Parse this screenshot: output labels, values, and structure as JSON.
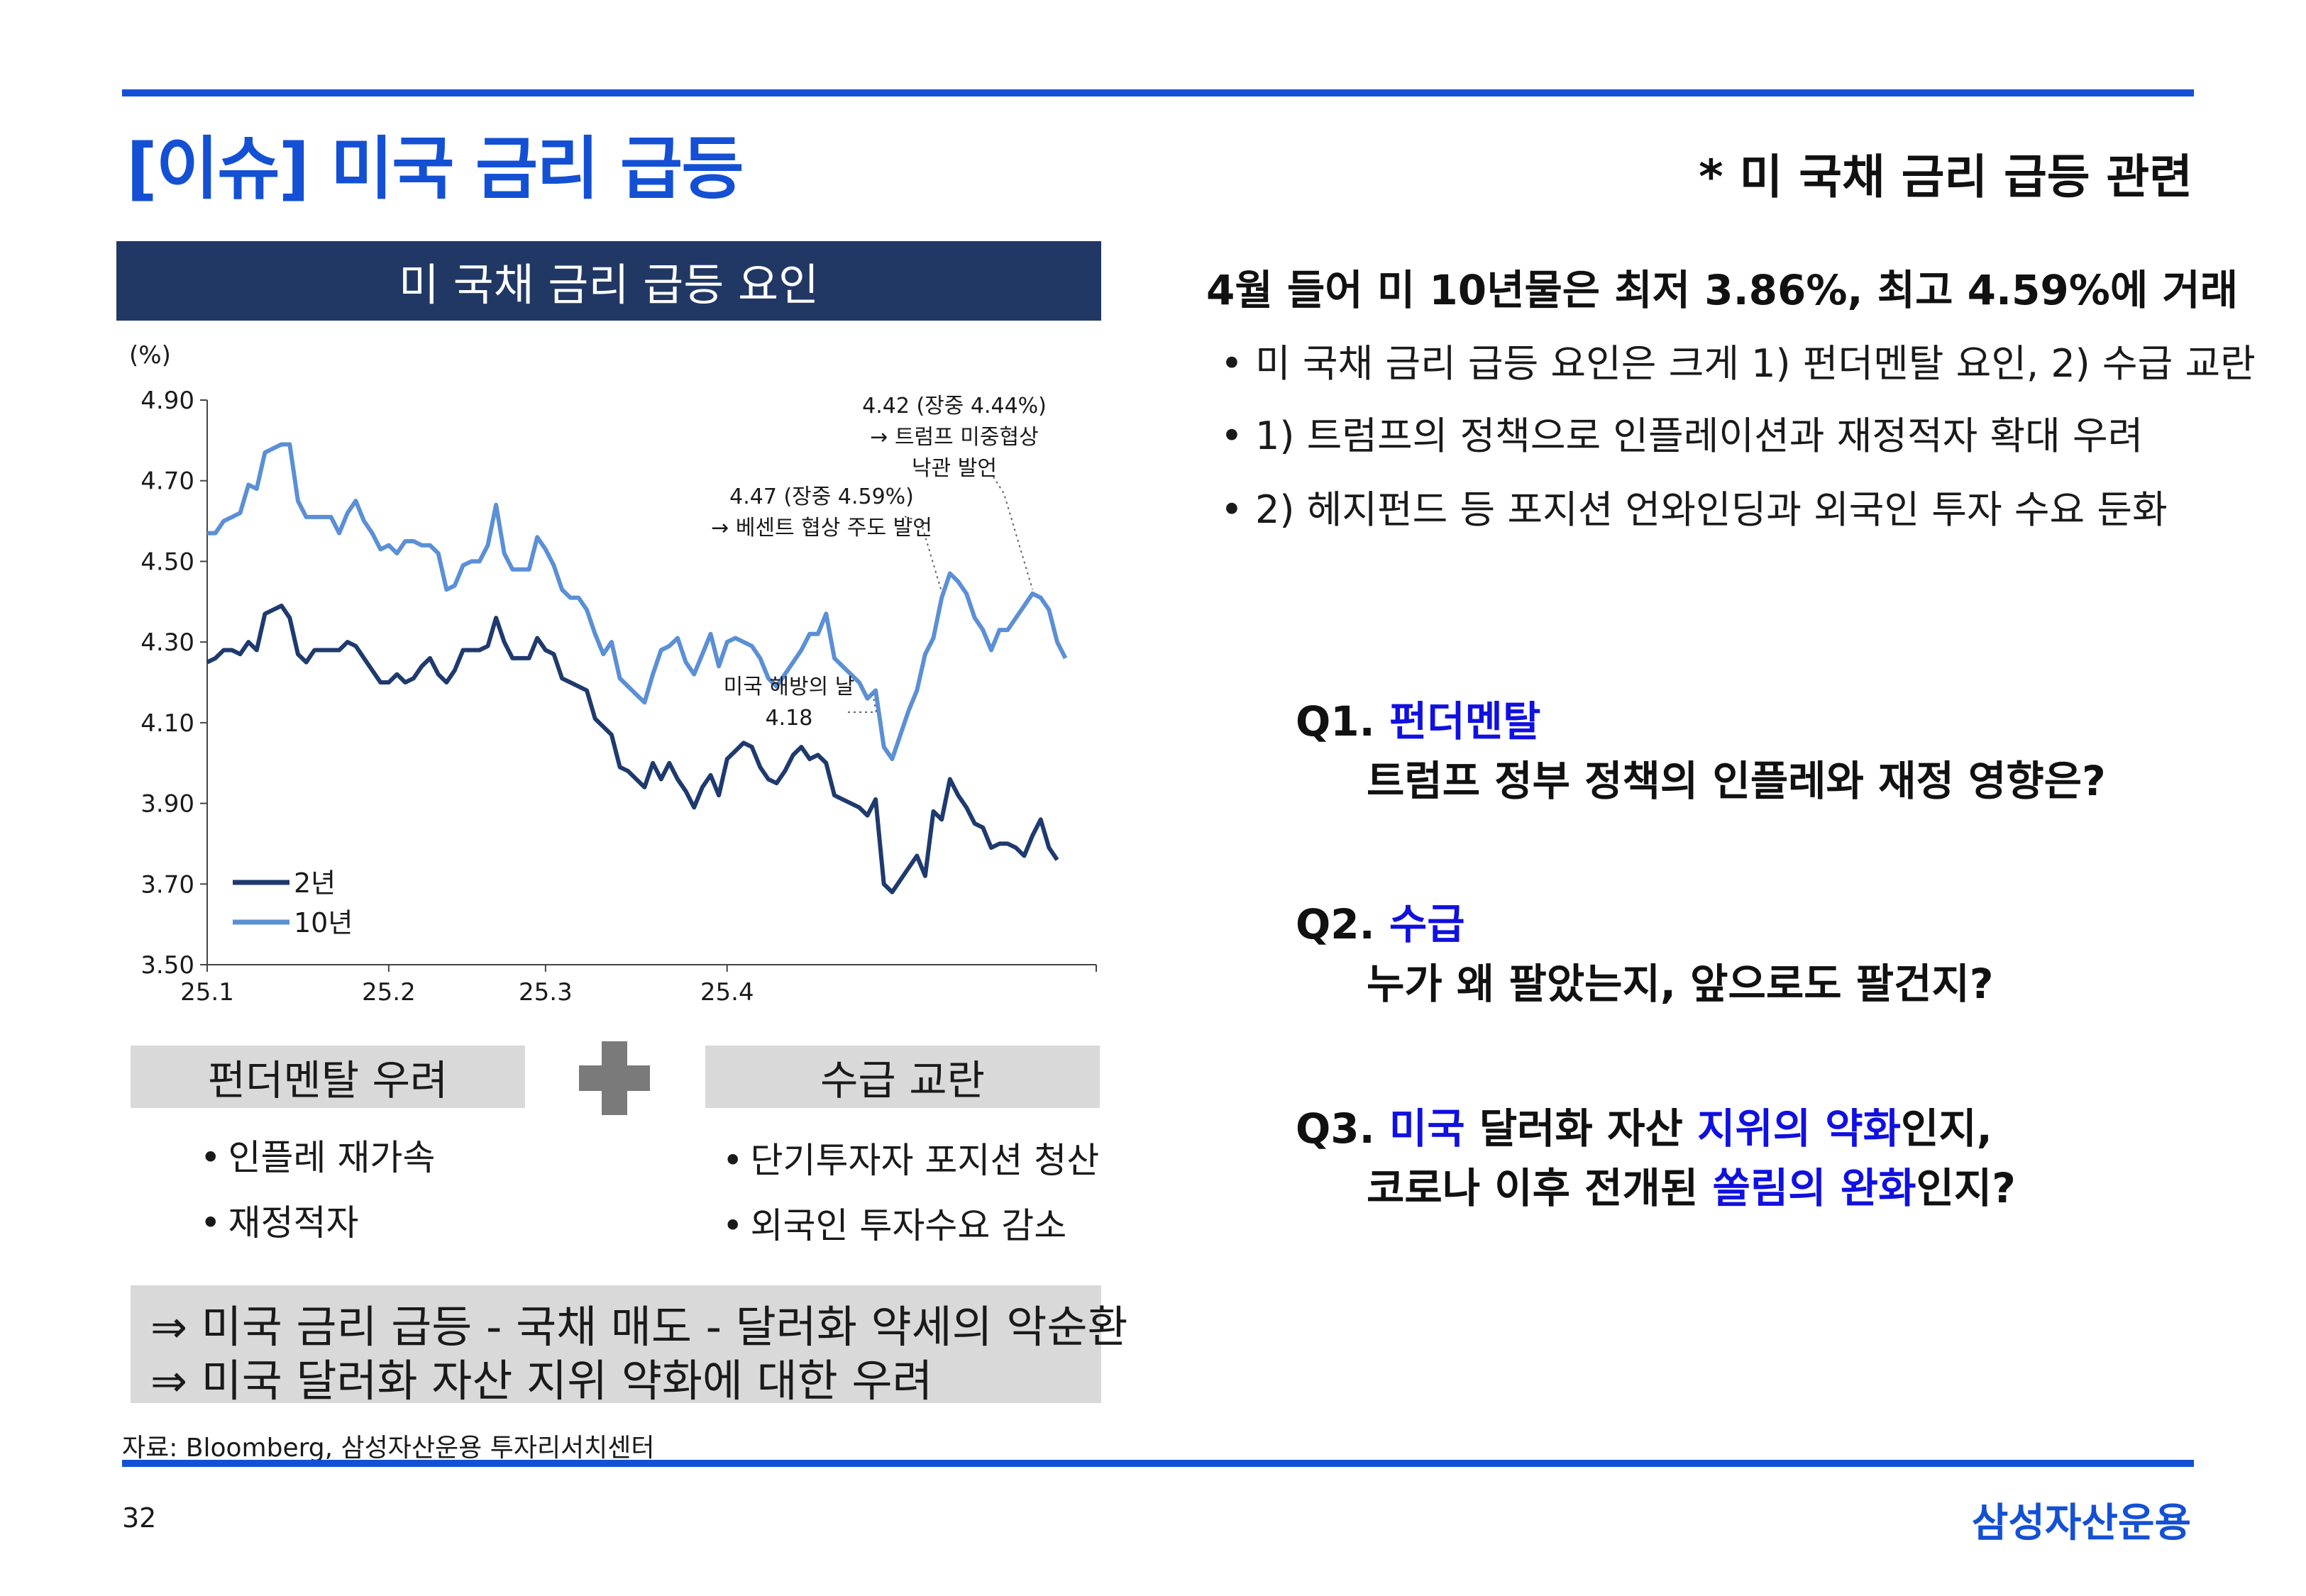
{
  "title": "[이슈] 미국 금리 급등",
  "subtitle_right": "* 미 국채 금리 급등 관련",
  "chart_banner": "미 국채 금리 급등 요인",
  "chart_data": {
    "type": "line",
    "y_unit_label": "(%)",
    "ylim": [
      3.5,
      4.9
    ],
    "yticks": [
      "4.90",
      "4.70",
      "4.50",
      "4.30",
      "4.10",
      "3.90",
      "3.70",
      "3.50"
    ],
    "xtick_labels": [
      "25.1",
      "25.2",
      "25.3",
      "25.4"
    ],
    "series": [
      {
        "name": "2년",
        "color": "#1e3a6e",
        "values": [
          4.25,
          4.26,
          4.28,
          4.28,
          4.27,
          4.3,
          4.28,
          4.37,
          4.38,
          4.39,
          4.36,
          4.27,
          4.25,
          4.28,
          4.28,
          4.28,
          4.28,
          4.3,
          4.29,
          4.26,
          4.23,
          4.2,
          4.2,
          4.22,
          4.2,
          4.21,
          4.24,
          4.26,
          4.22,
          4.2,
          4.23,
          4.28,
          4.28,
          4.28,
          4.29,
          4.36,
          4.3,
          4.26,
          4.26,
          4.26,
          4.31,
          4.28,
          4.27,
          4.21,
          4.2,
          4.19,
          4.18,
          4.11,
          4.09,
          4.07,
          3.99,
          3.98,
          3.96,
          3.94,
          4.0,
          3.96,
          4.0,
          3.96,
          3.93,
          3.89,
          3.94,
          3.97,
          3.92,
          4.01,
          4.03,
          4.05,
          4.04,
          3.99,
          3.96,
          3.95,
          3.98,
          4.02,
          4.04,
          4.01,
          4.02,
          4.0,
          3.92,
          3.91,
          3.9,
          3.89,
          3.87,
          3.91,
          3.7,
          3.68,
          3.71,
          3.74,
          3.77,
          3.72,
          3.88,
          3.86,
          3.96,
          3.92,
          3.89,
          3.85,
          3.84,
          3.79,
          3.8,
          3.8,
          3.79,
          3.77,
          3.82,
          3.86,
          3.79,
          3.76
        ]
      },
      {
        "name": "10년",
        "color": "#5b8fd6",
        "values": [
          4.57,
          4.57,
          4.6,
          4.61,
          4.62,
          4.69,
          4.68,
          4.77,
          4.78,
          4.79,
          4.79,
          4.65,
          4.61,
          4.61,
          4.61,
          4.61,
          4.57,
          4.62,
          4.65,
          4.6,
          4.57,
          4.53,
          4.54,
          4.52,
          4.55,
          4.55,
          4.54,
          4.54,
          4.52,
          4.43,
          4.44,
          4.49,
          4.5,
          4.5,
          4.54,
          4.64,
          4.52,
          4.48,
          4.48,
          4.48,
          4.56,
          4.53,
          4.49,
          4.43,
          4.41,
          4.41,
          4.38,
          4.32,
          4.27,
          4.3,
          4.21,
          4.19,
          4.17,
          4.15,
          4.22,
          4.28,
          4.29,
          4.31,
          4.25,
          4.22,
          4.27,
          4.32,
          4.24,
          4.3,
          4.31,
          4.3,
          4.29,
          4.26,
          4.21,
          4.19,
          4.22,
          4.25,
          4.28,
          4.32,
          4.32,
          4.37,
          4.26,
          4.24,
          4.22,
          4.2,
          4.16,
          4.18,
          4.04,
          4.01,
          4.07,
          4.13,
          4.18,
          4.27,
          4.31,
          4.41,
          4.47,
          4.45,
          4.42,
          4.36,
          4.33,
          4.28,
          4.33,
          4.33,
          4.36,
          4.39,
          4.42,
          4.41,
          4.38,
          4.3,
          4.26
        ]
      }
    ],
    "annotations": [
      {
        "lines": [
          "4.42 (장중 4.44%)",
          "→ 트럼프 미중협상",
          "낙관 발언"
        ],
        "point_index": 100,
        "series": 1
      },
      {
        "lines": [
          "4.47 (장중 4.59%)",
          "→ 베센트 협상 주도 발언"
        ],
        "point_index": 89,
        "series": 1
      },
      {
        "lines": [
          "미국 해방의 날",
          "4.18"
        ],
        "point_index": 81,
        "series": 1
      }
    ],
    "legend_position": "bottom-left",
    "grid": false
  },
  "factors": {
    "left_label": "펀더멘탈 우려",
    "right_label": "수급 교란",
    "left_items": [
      "인플레 재가속",
      "재정적자"
    ],
    "right_items": [
      "단기투자자 포지션 청산",
      "외국인 투자수요 감소"
    ]
  },
  "conclusion": {
    "line1": "⇒ 미국 금리 급등 - 국채 매도 - 달러화 약세의 악순환",
    "line2": "⇒ 미국 달러화 자산 지위 약화에 대한 우려"
  },
  "source": "자료: Bloomberg, 삼성자산운용 투자리서치센터",
  "page_number": "32",
  "brand": "삼성자산운용",
  "right_panel": {
    "headline": "4월 들어 미 10년물은 최저 3.86%, 최고 4.59%에 거래",
    "bullets": [
      "• 미 국채 금리 급등 요인은 크게 1) 펀더멘탈 요인, 2) 수급 교란",
      "• 1) 트럼프의 정책으로 인플레이션과 재정적자 확대 우려",
      "• 2) 헤지펀드 등 포지션 언와인딩과 외국인 투자 수요 둔화"
    ],
    "q1": {
      "prefix": "Q1. ",
      "highlight": "펀더멘탈",
      "detail": "트럼프 정부 정책의 인플레와 재정 영향은?"
    },
    "q2": {
      "prefix": "Q2. ",
      "highlight": "수급",
      "detail": "누가 왜 팔았는지, 앞으로도 팔건지?"
    },
    "q3": {
      "l1_prefix": "Q3. ",
      "l1_hl1": "미국",
      "l1_mid": " 달러화 자산 ",
      "l1_hl2": "지위의 약화",
      "l1_end": "인지,",
      "l2_start": "코로나 이후 전개된 ",
      "l2_hl": "쏠림의 완화",
      "l2_end": "인지?"
    }
  }
}
